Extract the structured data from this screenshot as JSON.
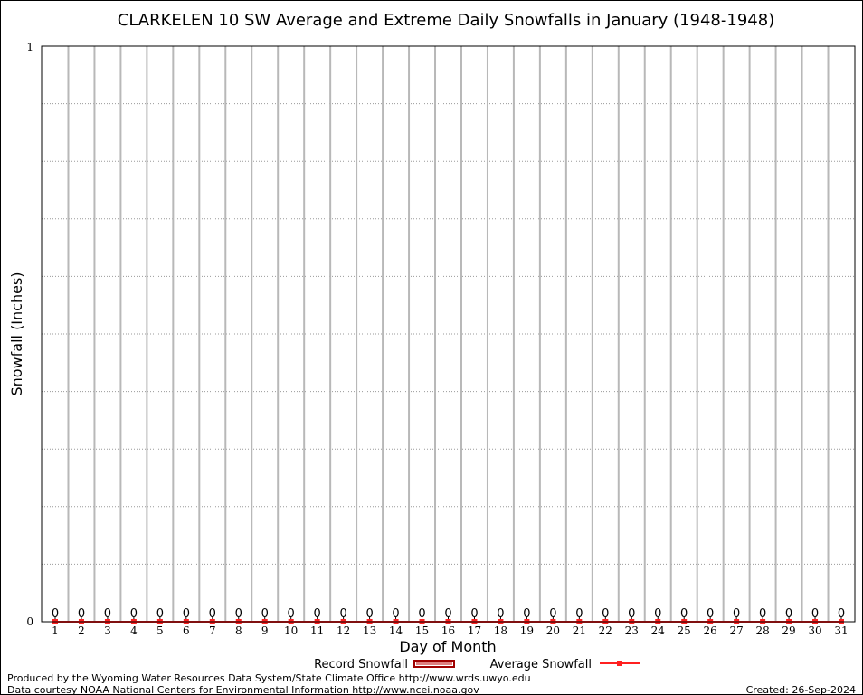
{
  "chart_data": {
    "type": "bar",
    "title": "CLARKELEN 10 SW Average and Extreme Daily Snowfalls in January (1948-1948)",
    "xlabel": "Day of Month",
    "ylabel": "Snowfall (Inches)",
    "ylim": [
      0,
      1
    ],
    "y_tick_labels": [
      "0",
      "1"
    ],
    "grid": true,
    "categories": [
      1,
      2,
      3,
      4,
      5,
      6,
      7,
      8,
      9,
      10,
      11,
      12,
      13,
      14,
      15,
      16,
      17,
      18,
      19,
      20,
      21,
      22,
      23,
      24,
      25,
      26,
      27,
      28,
      29,
      30,
      31
    ],
    "series": [
      {
        "name": "Record Snowfall",
        "type": "bar",
        "color": "#a00000",
        "values": [
          0,
          0,
          0,
          0,
          0,
          0,
          0,
          0,
          0,
          0,
          0,
          0,
          0,
          0,
          0,
          0,
          0,
          0,
          0,
          0,
          0,
          0,
          0,
          0,
          0,
          0,
          0,
          0,
          0,
          0,
          0
        ]
      },
      {
        "name": "Average Snowfall",
        "type": "line",
        "color": "#ff2020",
        "values": [
          0,
          0,
          0,
          0,
          0,
          0,
          0,
          0,
          0,
          0,
          0,
          0,
          0,
          0,
          0,
          0,
          0,
          0,
          0,
          0,
          0,
          0,
          0,
          0,
          0,
          0,
          0,
          0,
          0,
          0,
          0
        ]
      }
    ],
    "data_labels": [
      "0",
      "0",
      "0",
      "0",
      "0",
      "0",
      "0",
      "0",
      "0",
      "0",
      "0",
      "0",
      "0",
      "0",
      "0",
      "0",
      "0",
      "0",
      "0",
      "0",
      "0",
      "0",
      "0",
      "0",
      "0",
      "0",
      "0",
      "0",
      "0",
      "0",
      "0"
    ],
    "legend": [
      "Record Snowfall",
      "Average Snowfall"
    ],
    "legend_placement": "bottom"
  },
  "footer": {
    "produced_by": "Produced by the Wyoming Water Resources Data System/State Climate Office http://www.wrds.uwyo.edu",
    "data_courtesy": "Data courtesy NOAA National Centers for Environmental Information http://www.ncei.noaa.gov",
    "created": "Created: 26-Sep-2024"
  }
}
